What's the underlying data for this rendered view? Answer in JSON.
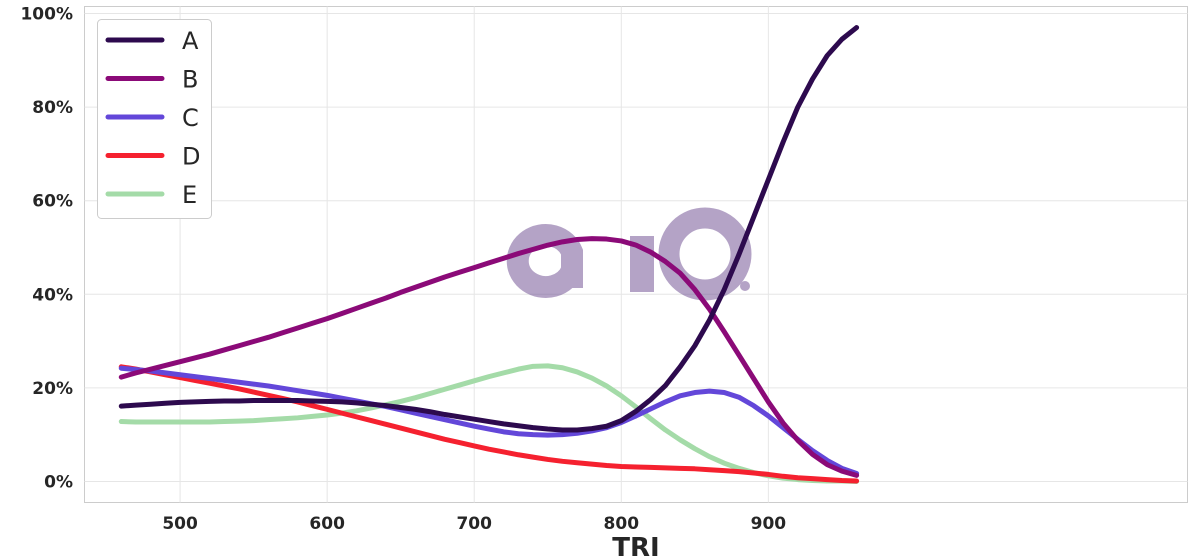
{
  "chart_data": {
    "type": "line",
    "xlabel": "TRI",
    "ylabel": "",
    "title": "",
    "xlim": [
      435,
      1185
    ],
    "ylim": [
      -0.045,
      1.015
    ],
    "xticks": [
      500,
      600,
      700,
      800,
      900
    ],
    "yticks": [
      0,
      0.2,
      0.4,
      0.6,
      0.8,
      1.0
    ],
    "ytick_labels": [
      "0%",
      "20%",
      "40%",
      "60%",
      "80%",
      "100%"
    ],
    "grid": true,
    "legend_position": "top-left",
    "watermark": "aio",
    "x": [
      460,
      470,
      480,
      490,
      500,
      510,
      520,
      530,
      540,
      550,
      560,
      570,
      580,
      590,
      600,
      610,
      620,
      630,
      640,
      650,
      660,
      670,
      680,
      690,
      700,
      710,
      720,
      730,
      740,
      750,
      760,
      770,
      780,
      790,
      800,
      810,
      820,
      830,
      840,
      850,
      860,
      870,
      880,
      890,
      900,
      910,
      920,
      930,
      940,
      950,
      960
    ],
    "series": [
      {
        "name": "A",
        "color": "#2d0a4e",
        "values": [
          0.161,
          0.163,
          0.165,
          0.167,
          0.169,
          0.17,
          0.171,
          0.172,
          0.172,
          0.173,
          0.173,
          0.173,
          0.173,
          0.172,
          0.171,
          0.17,
          0.168,
          0.165,
          0.162,
          0.158,
          0.154,
          0.149,
          0.143,
          0.138,
          0.133,
          0.128,
          0.123,
          0.119,
          0.115,
          0.112,
          0.11,
          0.11,
          0.113,
          0.118,
          0.13,
          0.15,
          0.175,
          0.205,
          0.245,
          0.29,
          0.345,
          0.41,
          0.485,
          0.565,
          0.645,
          0.725,
          0.8,
          0.86,
          0.91,
          0.945,
          0.97
        ]
      },
      {
        "name": "B",
        "color": "#8b0a78",
        "values": [
          0.223,
          0.232,
          0.24,
          0.248,
          0.256,
          0.264,
          0.272,
          0.281,
          0.29,
          0.299,
          0.308,
          0.318,
          0.328,
          0.338,
          0.348,
          0.359,
          0.37,
          0.381,
          0.392,
          0.404,
          0.415,
          0.426,
          0.437,
          0.447,
          0.457,
          0.467,
          0.477,
          0.487,
          0.496,
          0.505,
          0.512,
          0.517,
          0.519,
          0.518,
          0.514,
          0.505,
          0.49,
          0.47,
          0.445,
          0.41,
          0.368,
          0.32,
          0.27,
          0.22,
          0.17,
          0.125,
          0.088,
          0.058,
          0.036,
          0.022,
          0.013
        ]
      },
      {
        "name": "C",
        "color": "#6347d9",
        "values": [
          0.242,
          0.239,
          0.236,
          0.232,
          0.228,
          0.224,
          0.22,
          0.216,
          0.212,
          0.208,
          0.204,
          0.199,
          0.194,
          0.189,
          0.184,
          0.178,
          0.172,
          0.166,
          0.16,
          0.153,
          0.146,
          0.139,
          0.132,
          0.125,
          0.118,
          0.112,
          0.106,
          0.102,
          0.1,
          0.099,
          0.1,
          0.103,
          0.108,
          0.115,
          0.126,
          0.14,
          0.155,
          0.17,
          0.183,
          0.19,
          0.193,
          0.19,
          0.18,
          0.162,
          0.14,
          0.115,
          0.09,
          0.066,
          0.045,
          0.028,
          0.017
        ]
      },
      {
        "name": "D",
        "color": "#f5212f",
        "values": [
          0.245,
          0.24,
          0.234,
          0.228,
          0.222,
          0.216,
          0.21,
          0.204,
          0.198,
          0.191,
          0.184,
          0.177,
          0.17,
          0.162,
          0.154,
          0.146,
          0.138,
          0.13,
          0.122,
          0.114,
          0.106,
          0.098,
          0.09,
          0.083,
          0.076,
          0.069,
          0.063,
          0.057,
          0.052,
          0.047,
          0.043,
          0.04,
          0.037,
          0.034,
          0.032,
          0.031,
          0.03,
          0.029,
          0.028,
          0.027,
          0.025,
          0.023,
          0.021,
          0.018,
          0.015,
          0.011,
          0.008,
          0.006,
          0.004,
          0.002,
          0.001
        ]
      },
      {
        "name": "E",
        "color": "#a4dba8",
        "values": [
          0.128,
          0.127,
          0.127,
          0.127,
          0.127,
          0.127,
          0.127,
          0.128,
          0.129,
          0.13,
          0.132,
          0.134,
          0.136,
          0.139,
          0.142,
          0.146,
          0.151,
          0.157,
          0.164,
          0.171,
          0.179,
          0.188,
          0.197,
          0.206,
          0.215,
          0.224,
          0.232,
          0.24,
          0.246,
          0.247,
          0.243,
          0.234,
          0.221,
          0.204,
          0.183,
          0.159,
          0.134,
          0.11,
          0.089,
          0.07,
          0.053,
          0.039,
          0.028,
          0.019,
          0.012,
          0.007,
          0.004,
          0.002,
          0.001,
          0.001,
          0.0
        ]
      }
    ]
  }
}
